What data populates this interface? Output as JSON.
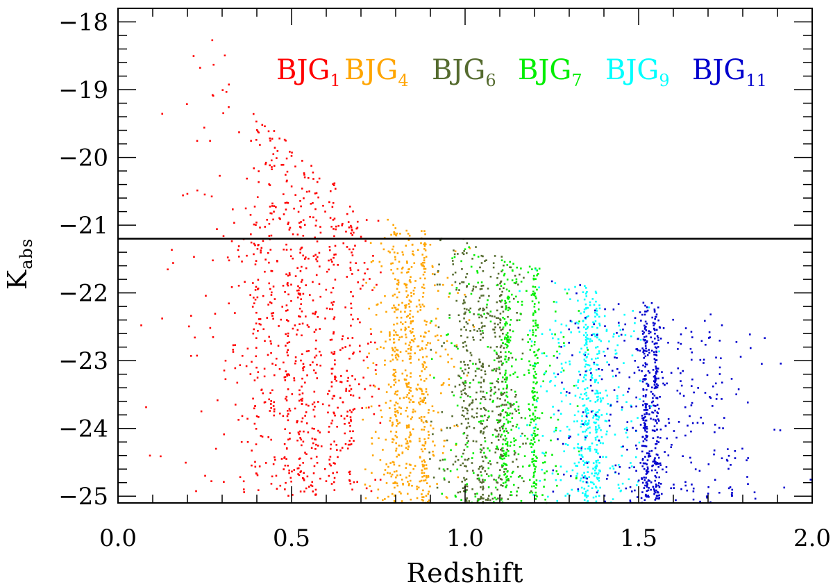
{
  "chart_data": {
    "type": "scatter",
    "title": "",
    "xlabel": "Redshift",
    "ylabel": "K",
    "ylabel_subscript": "abs",
    "xlim": [
      0.0,
      2.0
    ],
    "ylim": [
      -25.1,
      -17.8
    ],
    "y_inverted": true,
    "x_ticks": [
      {
        "value": 0.0,
        "label": "0.0"
      },
      {
        "value": 0.5,
        "label": "0.5"
      },
      {
        "value": 1.0,
        "label": "1.0"
      },
      {
        "value": 1.5,
        "label": "1.5"
      },
      {
        "value": 2.0,
        "label": "2.0"
      }
    ],
    "y_ticks": [
      {
        "value": -18,
        "label": "−18"
      },
      {
        "value": -19,
        "label": "−19"
      },
      {
        "value": -20,
        "label": "−20"
      },
      {
        "value": -21,
        "label": "−21"
      },
      {
        "value": -22,
        "label": "−22"
      },
      {
        "value": -23,
        "label": "−23"
      },
      {
        "value": -24,
        "label": "−24"
      },
      {
        "value": -25,
        "label": "−25"
      }
    ],
    "x_minor_step": 0.1,
    "y_minor_step": 0.2,
    "reference_line": {
      "axis": "y",
      "value": -21.2,
      "color": "#000000"
    },
    "series": [
      {
        "name": "BJG",
        "subscript": "1",
        "color": "#ff0000",
        "z_center": 0.53,
        "z_spread": 0.16,
        "z_min": 0.05,
        "z_max": 0.76,
        "k_bright": -25.0,
        "density": 900,
        "stripes": [
          0.4,
          0.44,
          0.49,
          0.53,
          0.57,
          0.62,
          0.67
        ]
      },
      {
        "name": "BJG",
        "subscript": "4",
        "color": "#ffa500",
        "z_center": 0.84,
        "z_spread": 0.07,
        "z_min": 0.7,
        "z_max": 1.05,
        "k_bright": -25.1,
        "density": 650,
        "stripes": [
          0.8,
          0.84,
          0.88
        ]
      },
      {
        "name": "BJG",
        "subscript": "6",
        "color": "#556b2f",
        "z_center": 1.05,
        "z_spread": 0.07,
        "z_min": 0.88,
        "z_max": 1.2,
        "k_bright": -25.1,
        "density": 550,
        "stripes": [
          1.0,
          1.05,
          1.1
        ]
      },
      {
        "name": "BJG",
        "subscript": "7",
        "color": "#00ee00",
        "z_center": 1.12,
        "z_spread": 0.1,
        "z_min": 0.9,
        "z_max": 1.4,
        "k_bright": -25.1,
        "density": 550,
        "stripes": [
          1.12,
          1.2
        ]
      },
      {
        "name": "BJG",
        "subscript": "9",
        "color": "#00ffff",
        "z_center": 1.35,
        "z_spread": 0.09,
        "z_min": 1.15,
        "z_max": 1.6,
        "k_bright": -25.1,
        "density": 500,
        "stripes": [
          1.35,
          1.38
        ]
      },
      {
        "name": "BJG",
        "subscript": "11",
        "color": "#0000cd",
        "z_center": 1.55,
        "z_spread": 0.17,
        "z_min": 1.25,
        "z_max": 2.0,
        "k_bright": -25.1,
        "density": 650,
        "stripes": [
          1.52,
          1.55
        ]
      }
    ],
    "bright_limit": [
      {
        "z": 0.05,
        "k": -18.0
      },
      {
        "z": 0.25,
        "k": -17.9
      },
      {
        "z": 0.4,
        "k": -19.4
      },
      {
        "z": 0.6,
        "k": -20.2
      },
      {
        "z": 0.8,
        "k": -21.0
      },
      {
        "z": 1.0,
        "k": -21.2
      },
      {
        "z": 1.2,
        "k": -21.6
      },
      {
        "z": 1.4,
        "k": -22.0
      },
      {
        "z": 1.6,
        "k": -22.2
      },
      {
        "z": 1.8,
        "k": -22.4
      },
      {
        "z": 2.0,
        "k": -22.6
      }
    ],
    "legend_position": "top"
  }
}
